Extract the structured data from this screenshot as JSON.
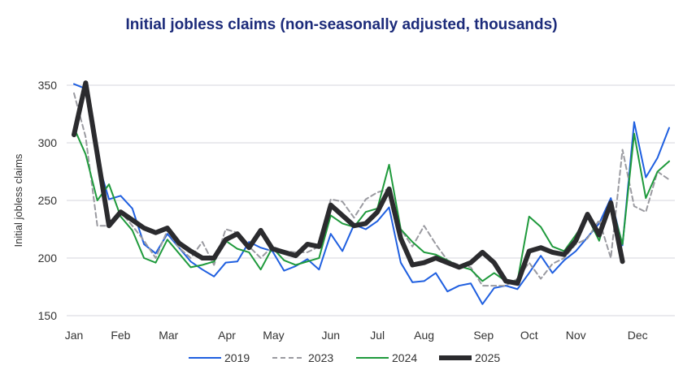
{
  "chart_data": {
    "type": "line",
    "title": "Initial jobless claims (non-seasonally adjusted, thousands)",
    "xlabel": "",
    "ylabel": "Initial jobless claims",
    "ylim": [
      150,
      350
    ],
    "yticks": [
      150,
      200,
      250,
      300,
      350
    ],
    "grid": "horizontal",
    "legend": "bottom",
    "x_unit": "week of year",
    "month_ticks": [
      {
        "label": "Jan",
        "week": 1
      },
      {
        "label": "Feb",
        "week": 5
      },
      {
        "label": "Mar",
        "week": 9.1
      },
      {
        "label": "Apr",
        "week": 14.1
      },
      {
        "label": "May",
        "week": 18.1
      },
      {
        "label": "Jun",
        "week": 23
      },
      {
        "label": "Jul",
        "week": 27
      },
      {
        "label": "Aug",
        "week": 31
      },
      {
        "label": "Sep",
        "week": 36.1
      },
      {
        "label": "Oct",
        "week": 40
      },
      {
        "label": "Nov",
        "week": 44
      },
      {
        "label": "Dec",
        "week": 49.3
      }
    ],
    "series": [
      {
        "name": "2019",
        "color": "#1f5fe0",
        "dash": "",
        "width": 2,
        "values": [
          351,
          347,
          285,
          251,
          254,
          243,
          212,
          204,
          221,
          209,
          197,
          190,
          184,
          196,
          197,
          214,
          209,
          206,
          189,
          193,
          199,
          190,
          221,
          206,
          229,
          225,
          232,
          244,
          196,
          179,
          180,
          187,
          171,
          176,
          178,
          160,
          174,
          176,
          173,
          187,
          202,
          187,
          198,
          206,
          218,
          230,
          252,
          211,
          318,
          270,
          287,
          313
        ]
      },
      {
        "name": "2023",
        "color": "#9a9aa0",
        "dash": "6,4",
        "width": 2,
        "values": [
          343,
          305,
          228,
          228,
          240,
          228,
          215,
          200,
          224,
          209,
          200,
          214,
          194,
          225,
          222,
          210,
          200,
          210,
          206,
          205,
          205,
          210,
          251,
          249,
          235,
          251,
          257,
          260,
          225,
          210,
          228,
          212,
          198,
          194,
          192,
          176,
          176,
          176,
          182,
          196,
          182,
          195,
          200,
          212,
          217,
          233,
          200,
          294,
          245,
          240,
          275,
          268
        ]
      },
      {
        "name": "2024",
        "color": "#1f9a3c",
        "dash": "",
        "width": 2,
        "values": [
          313,
          290,
          250,
          264,
          236,
          224,
          200,
          196,
          216,
          204,
          192,
          194,
          197,
          215,
          208,
          205,
          190,
          209,
          198,
          194,
          197,
          200,
          237,
          230,
          227,
          240,
          243,
          281,
          225,
          214,
          205,
          203,
          198,
          193,
          190,
          180,
          187,
          180,
          180,
          236,
          227,
          210,
          206,
          220,
          236,
          215,
          249,
          212,
          308,
          252,
          275,
          284
        ]
      },
      {
        "name": "2025",
        "color": "#2b2b2e",
        "dash": "",
        "width": 6,
        "values": [
          307,
          352,
          290,
          228,
          240,
          233,
          226,
          222,
          226,
          213,
          206,
          200,
          200,
          216,
          221,
          209,
          224,
          208,
          205,
          202,
          212,
          210,
          246,
          237,
          228,
          230,
          240,
          260,
          217,
          194,
          196,
          200,
          196,
          192,
          196,
          205,
          196,
          180,
          178,
          206,
          209,
          205,
          203,
          215,
          238,
          220,
          248,
          197
        ]
      }
    ]
  }
}
